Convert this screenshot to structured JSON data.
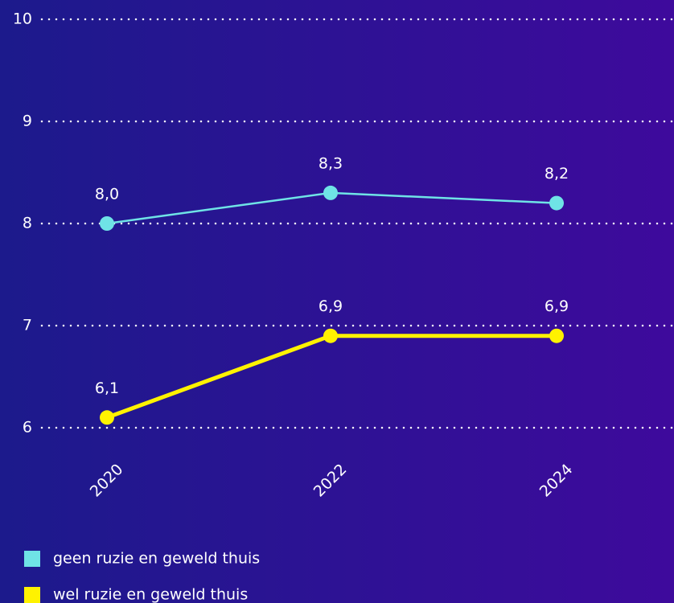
{
  "chart_data": {
    "type": "line",
    "categories": [
      "2020",
      "2022",
      "2024"
    ],
    "series": [
      {
        "name": "geen ruzie en geweld thuis",
        "color": "#6fe3e6",
        "values": [
          8.0,
          8.3,
          8.2
        ],
        "value_labels": [
          "8,0",
          "8,3",
          "8,2"
        ]
      },
      {
        "name": "wel ruzie en geweld thuis",
        "color": "#fff200",
        "values": [
          6.1,
          6.9,
          6.9
        ],
        "value_labels": [
          "6,1",
          "6,9",
          "6,9"
        ]
      }
    ],
    "ylim": [
      6,
      10
    ],
    "yticks": [
      6,
      7,
      8,
      9,
      10
    ],
    "grid": true
  }
}
